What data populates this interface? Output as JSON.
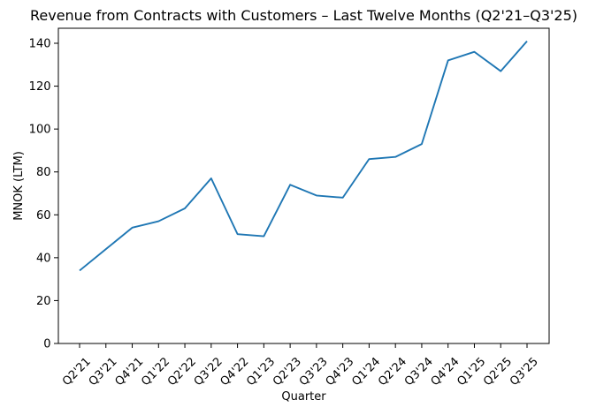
{
  "chart_data": {
    "type": "line",
    "title": "Revenue from Contracts with Customers – Last Twelve Months (Q2'21–Q3'25)",
    "xlabel": "Quarter",
    "ylabel": "MNOK (LTM)",
    "categories": [
      "Q2'21",
      "Q3'21",
      "Q4'21",
      "Q1'22",
      "Q2'22",
      "Q3'22",
      "Q4'22",
      "Q1'23",
      "Q2'23",
      "Q3'23",
      "Q4'23",
      "Q1'24",
      "Q2'24",
      "Q3'24",
      "Q4'24",
      "Q1'25",
      "Q2'25",
      "Q3'25"
    ],
    "values": [
      34,
      44,
      54,
      57,
      63,
      77,
      51,
      50,
      74,
      69,
      68,
      86,
      87,
      93,
      132,
      136,
      127,
      141
    ],
    "yticks": [
      0,
      20,
      40,
      60,
      80,
      100,
      120,
      140
    ],
    "ylim": [
      0,
      147
    ],
    "x_tick_rotation": 45,
    "grid": false,
    "legend": null,
    "line_color": "#1f77b4",
    "frame_color": "#000000",
    "text_color": "#000000",
    "background_color": "#ffffff"
  }
}
